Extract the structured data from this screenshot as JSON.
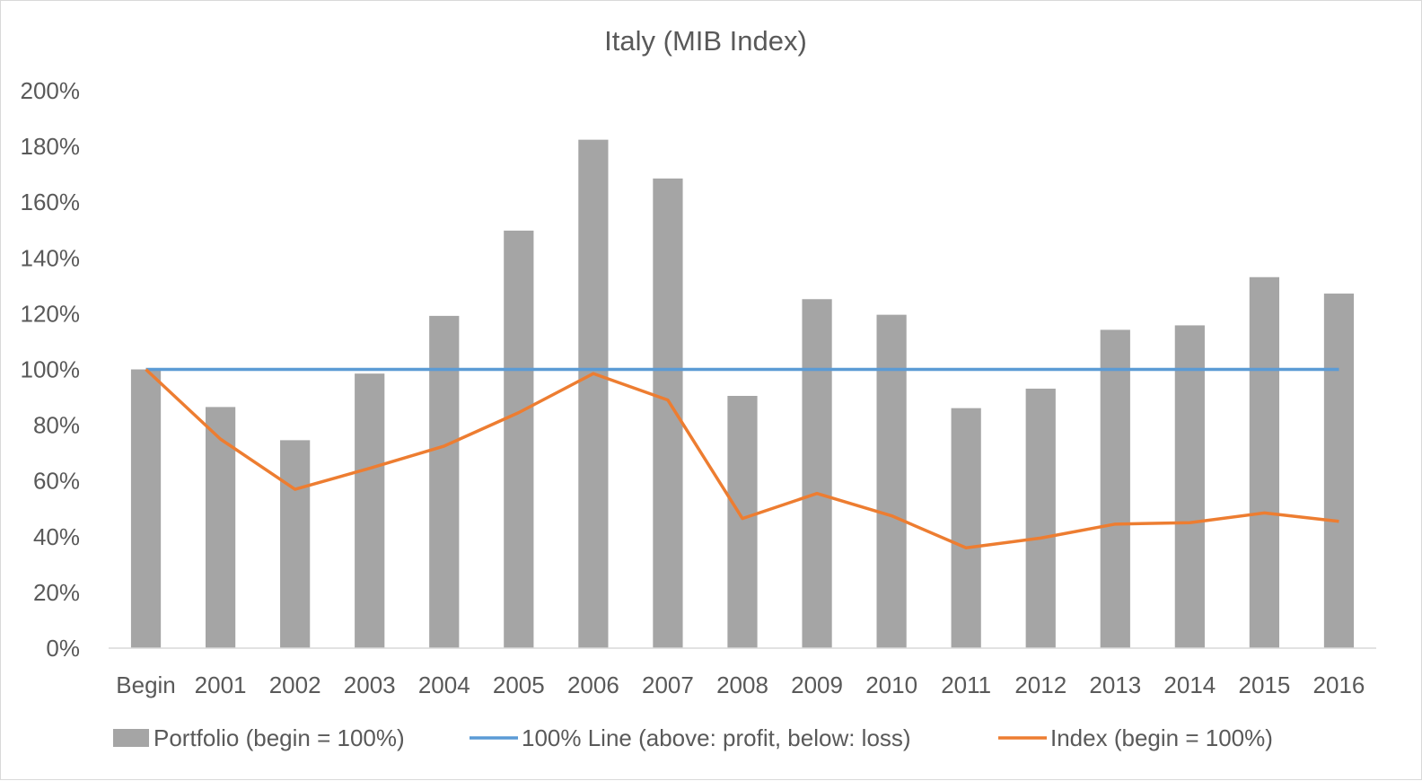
{
  "chart_data": {
    "type": "bar",
    "title": "Italy (MIB Index)",
    "xlabel": "",
    "ylabel": "",
    "categories": [
      "Begin",
      "2001",
      "2002",
      "2003",
      "2004",
      "2005",
      "2006",
      "2007",
      "2008",
      "2009",
      "2010",
      "2011",
      "2012",
      "2013",
      "2014",
      "2015",
      "2016"
    ],
    "y_ticks": [
      "0%",
      "20%",
      "40%",
      "60%",
      "80%",
      "100%",
      "120%",
      "140%",
      "160%",
      "180%",
      "200%"
    ],
    "ylim": [
      0,
      200
    ],
    "y_unit": "%",
    "grid": false,
    "legend_position": "bottom",
    "series": [
      {
        "name": "Portfolio (begin = 100%)",
        "type": "bar",
        "color": "#a5a5a5",
        "values": [
          100,
          86.5,
          74.6,
          98.5,
          119.2,
          149.8,
          182.4,
          168.5,
          90.5,
          125.2,
          119.6,
          86.1,
          93.1,
          114.2,
          115.8,
          133.1,
          127.2
        ]
      },
      {
        "name": "100% Line (above: profit, below: loss)",
        "type": "line",
        "color": "#5b9bd5",
        "values": [
          100,
          100,
          100,
          100,
          100,
          100,
          100,
          100,
          100,
          100,
          100,
          100,
          100,
          100,
          100,
          100,
          100
        ]
      },
      {
        "name": "Index (begin = 100%)",
        "type": "line",
        "color": "#ed7d31",
        "values": [
          100,
          75,
          57,
          64.5,
          72.5,
          84.5,
          98.5,
          89,
          46.5,
          55.5,
          47.5,
          36,
          39.5,
          44.5,
          45,
          48.5,
          45.5
        ]
      }
    ]
  }
}
